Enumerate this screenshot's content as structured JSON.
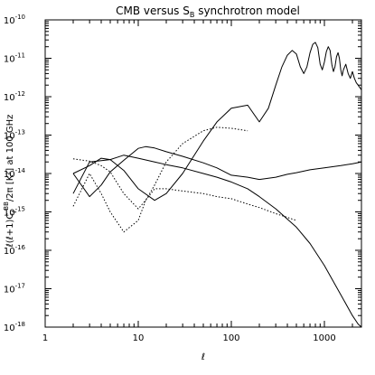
{
  "chart_data": {
    "type": "line",
    "title_main": "CMB versus S",
    "title_sub": "B",
    "title_rest": " synchrotron model",
    "xlabel": "ℓ",
    "ylabel_main": "ℓ(ℓ+1)C",
    "ylabel_sup": "BB",
    "ylabel_sub": "ℓ",
    "ylabel_rest": "/2π  [K²] at 100 GHz",
    "x_scale": "log",
    "y_scale": "log",
    "xlim": [
      1,
      2500
    ],
    "ylim": [
      1e-18,
      1e-10
    ],
    "grid": false,
    "x_tick_labels": [
      {
        "value": 1,
        "label": "1"
      },
      {
        "value": 10,
        "label": "10"
      },
      {
        "value": 100,
        "label": "100"
      },
      {
        "value": 1000,
        "label": "1000"
      }
    ],
    "y_tick_labels": [
      {
        "exp": -10,
        "label": "10",
        "sup": "-10"
      },
      {
        "exp": -11,
        "label": "10",
        "sup": "-11"
      },
      {
        "exp": -12,
        "label": "10",
        "sup": "-12"
      },
      {
        "exp": -13,
        "label": "10",
        "sup": "-13"
      },
      {
        "exp": -14,
        "label": "10",
        "sup": "-14"
      },
      {
        "exp": -15,
        "label": "10",
        "sup": "-15"
      },
      {
        "exp": -16,
        "label": "10",
        "sup": "-16"
      },
      {
        "exp": -17,
        "label": "10",
        "sup": "-17"
      },
      {
        "exp": -18,
        "label": "10",
        "sup": "-18"
      }
    ],
    "series": [
      {
        "style": "solid",
        "color": "#000000",
        "x": [
          2,
          3,
          4,
          5,
          7,
          10,
          15,
          20,
          30,
          50,
          70,
          100,
          150,
          200,
          250,
          300,
          350,
          400,
          450,
          500,
          550,
          600,
          650,
          700,
          750,
          800,
          850,
          900,
          950,
          1000,
          1050,
          1100,
          1150,
          1200,
          1250,
          1300,
          1350,
          1400,
          1450,
          1500,
          1550,
          1600,
          1700,
          1800,
          1900,
          2000,
          2100,
          2200,
          2300,
          2500
        ],
        "y": [
          1e-14,
          1.6e-14,
          2.5e-14,
          2.3e-14,
          1.2e-14,
          4e-15,
          2e-15,
          3e-15,
          1e-14,
          7e-14,
          2.2e-13,
          5e-13,
          6e-13,
          2.2e-13,
          5e-13,
          2e-12,
          6e-12,
          1.2e-11,
          1.6e-11,
          1.3e-11,
          6e-12,
          4e-12,
          6e-12,
          1.4e-11,
          2.3e-11,
          2.6e-11,
          1.9e-11,
          7e-12,
          5e-12,
          8e-12,
          1.5e-11,
          2e-11,
          1.6e-11,
          7e-12,
          4.5e-12,
          6e-12,
          1.1e-11,
          1.4e-11,
          1e-11,
          5e-12,
          3.5e-12,
          5e-12,
          7e-12,
          4e-12,
          3e-12,
          4.5e-12,
          3e-12,
          2.3e-12,
          2e-12,
          1.5e-12
        ]
      },
      {
        "style": "solid",
        "color": "#000000",
        "x": [
          2,
          3,
          4,
          5,
          7,
          10,
          12,
          15,
          20,
          30,
          50,
          70,
          100,
          150,
          200,
          300,
          400,
          500,
          700,
          1000,
          1500,
          2000,
          2500
        ],
        "y": [
          1e-14,
          2.5e-15,
          5e-15,
          1.1e-14,
          2.2e-14,
          4.5e-14,
          5e-14,
          4.6e-14,
          3.7e-14,
          2.8e-14,
          1.9e-14,
          1.4e-14,
          9e-15,
          8e-15,
          7e-15,
          8e-15,
          9.5e-15,
          1.05e-14,
          1.25e-14,
          1.4e-14,
          1.6e-14,
          1.8e-14,
          2e-14
        ]
      },
      {
        "style": "solid",
        "color": "#000000",
        "x": [
          2,
          3,
          5,
          7,
          10,
          15,
          20,
          30,
          50,
          70,
          100,
          150,
          200,
          300,
          500,
          700,
          1000,
          1500,
          2000,
          2300,
          2500
        ],
        "y": [
          3e-15,
          2e-14,
          2.3e-14,
          3e-14,
          2.5e-14,
          2e-14,
          1.7e-14,
          1.4e-14,
          1e-14,
          8e-15,
          6e-15,
          4e-15,
          2.5e-15,
          1.2e-15,
          4e-16,
          1.5e-16,
          4e-17,
          7e-18,
          2e-18,
          1.2e-18,
          1e-18
        ]
      },
      {
        "style": "dotted",
        "color": "#000000",
        "x": [
          2,
          3,
          4,
          5,
          7,
          10,
          12,
          15,
          20,
          30,
          50,
          70,
          100,
          150
        ],
        "y": [
          1.4e-15,
          1e-14,
          3e-15,
          1e-15,
          3e-16,
          6e-16,
          2e-15,
          5e-15,
          2e-14,
          6e-14,
          1.3e-13,
          1.6e-13,
          1.5e-13,
          1.3e-13
        ]
      },
      {
        "style": "dotted",
        "color": "#000000",
        "x": [
          2,
          3,
          4,
          5,
          7,
          10,
          12,
          15,
          20,
          30,
          50,
          70,
          100,
          150,
          200,
          300,
          500
        ],
        "y": [
          2.4e-14,
          2.1e-14,
          1.6e-14,
          1.1e-14,
          3e-15,
          1.2e-15,
          2e-15,
          4e-15,
          4e-15,
          3.5e-15,
          3e-15,
          2.5e-15,
          2.2e-15,
          1.6e-15,
          1.3e-15,
          9e-16,
          6e-16
        ]
      }
    ]
  }
}
